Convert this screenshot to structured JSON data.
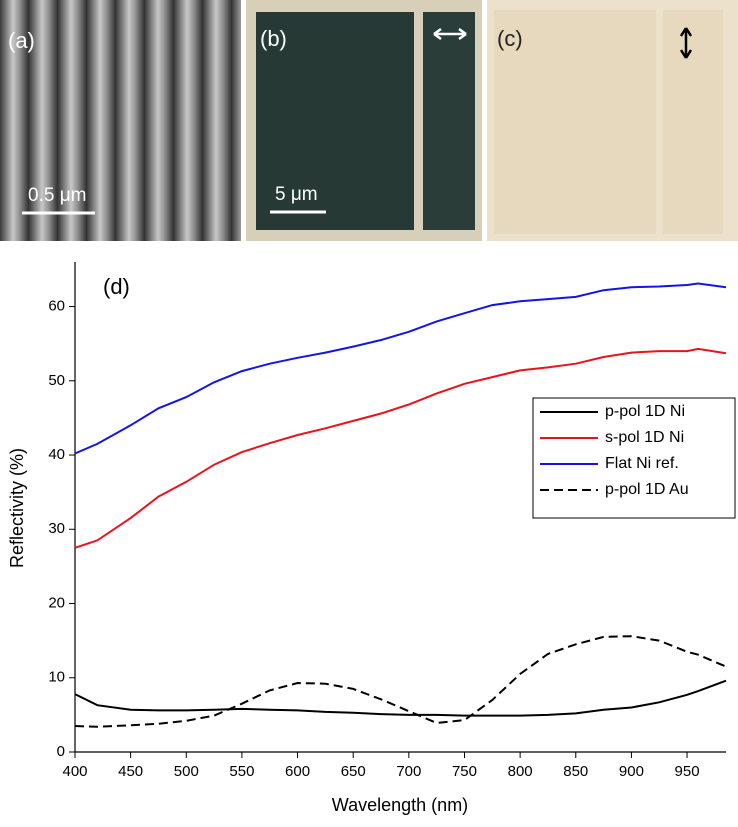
{
  "panels": [
    {
      "label": "(a)",
      "scale": "0.5 μm"
    },
    {
      "label": "(b)",
      "scale": "5 μm"
    },
    {
      "label": "(c)"
    }
  ],
  "chart_data": {
    "type": "line",
    "label": "(d)",
    "x_label": "Wavelength (nm)",
    "y_label": "Reflectivity (%)",
    "xlim": [
      400,
      985
    ],
    "ylim": [
      0,
      66
    ],
    "xticks": [
      400,
      450,
      500,
      550,
      600,
      650,
      700,
      750,
      800,
      850,
      900,
      950
    ],
    "yticks": [
      0,
      10,
      20,
      30,
      40,
      50,
      60
    ],
    "legend": "right",
    "x": [
      400,
      420,
      450,
      475,
      500,
      525,
      550,
      575,
      600,
      625,
      650,
      675,
      700,
      725,
      750,
      775,
      800,
      825,
      850,
      875,
      900,
      925,
      950,
      960,
      985
    ],
    "series": [
      {
        "name": "p-pol 1D Ni",
        "color": "#000000",
        "dash": "solid",
        "values": [
          7.8,
          6.3,
          5.7,
          5.6,
          5.6,
          5.7,
          5.8,
          5.7,
          5.6,
          5.4,
          5.3,
          5.1,
          5.0,
          5.0,
          4.9,
          4.9,
          4.9,
          5.0,
          5.2,
          5.7,
          6.0,
          6.7,
          7.7,
          8.2,
          9.6
        ]
      },
      {
        "name": "s-pol 1D Ni",
        "color": "#e8141b",
        "dash": "solid",
        "values": [
          27.5,
          28.5,
          31.5,
          34.4,
          36.4,
          38.7,
          40.4,
          41.6,
          42.7,
          43.6,
          44.6,
          45.6,
          46.8,
          48.3,
          49.6,
          50.5,
          51.4,
          51.8,
          52.3,
          53.2,
          53.8,
          54.0,
          54.0,
          54.3,
          53.7
        ]
      },
      {
        "name": "Flat Ni ref.",
        "color": "#1414e6",
        "dash": "solid",
        "values": [
          40.2,
          41.5,
          44.0,
          46.3,
          47.8,
          49.8,
          51.3,
          52.3,
          53.1,
          53.8,
          54.6,
          55.5,
          56.6,
          58.0,
          59.1,
          60.2,
          60.7,
          61.0,
          61.3,
          62.2,
          62.6,
          62.7,
          62.9,
          63.1,
          62.6
        ]
      },
      {
        "name": "p-pol 1D Au",
        "color": "#000000",
        "dash": "dashed",
        "values": [
          3.5,
          3.4,
          3.6,
          3.8,
          4.2,
          4.9,
          6.5,
          8.3,
          9.3,
          9.2,
          8.5,
          7.1,
          5.5,
          3.9,
          4.3,
          7.0,
          10.5,
          13.2,
          14.5,
          15.5,
          15.6,
          15.0,
          13.5,
          13.1,
          11.5
        ]
      }
    ]
  }
}
